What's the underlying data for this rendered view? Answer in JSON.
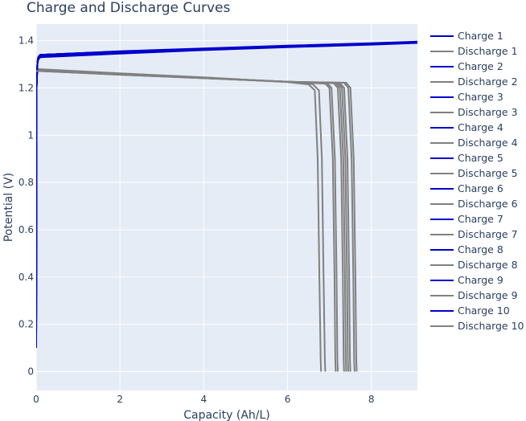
{
  "chart_data": {
    "type": "line",
    "title": "Charge and Discharge Curves",
    "xlabel": "Capacity (Ah/L)",
    "ylabel": "Potential (V)",
    "xlim": [
      0,
      9.1
    ],
    "ylim": [
      -0.08,
      1.47
    ],
    "x_ticks": [
      0,
      2,
      4,
      6,
      8
    ],
    "y_ticks": [
      0,
      0.2,
      0.4,
      0.6,
      0.8,
      1,
      1.2,
      1.4
    ],
    "grid": true,
    "legend_position": "right",
    "colors": {
      "charge": "#0000cd",
      "discharge": "#808080",
      "plot_bg": "#e5ecf6",
      "grid": "#ffffff",
      "text": "#2a3f5f"
    },
    "series": [
      {
        "name": "Charge 1",
        "kind": "charge",
        "x": [
          0,
          0.01,
          0.03,
          0.05,
          0.1,
          2,
          4,
          6,
          8,
          9.1
        ],
        "y": [
          0.1,
          1.2,
          1.3,
          1.32,
          1.33,
          1.345,
          1.36,
          1.372,
          1.383,
          1.39
        ]
      },
      {
        "name": "Discharge 1",
        "kind": "discharge",
        "x": [
          0,
          2,
          4,
          6,
          6.5,
          6.65,
          6.72,
          6.76,
          6.79,
          6.8
        ],
        "y": [
          1.28,
          1.262,
          1.245,
          1.225,
          1.215,
          1.19,
          0.9,
          0.4,
          0.05,
          0
        ]
      },
      {
        "name": "Charge 2",
        "kind": "charge",
        "x": [
          0,
          0.01,
          0.03,
          0.05,
          0.1,
          2,
          4,
          6,
          8,
          9.1
        ],
        "y": [
          0.12,
          1.2,
          1.31,
          1.325,
          1.335,
          1.348,
          1.362,
          1.374,
          1.384,
          1.392
        ]
      },
      {
        "name": "Discharge 2",
        "kind": "discharge",
        "x": [
          0,
          2,
          4,
          6,
          6.6,
          6.75,
          6.82,
          6.86,
          6.89,
          6.9
        ],
        "y": [
          1.278,
          1.26,
          1.243,
          1.225,
          1.216,
          1.19,
          0.9,
          0.4,
          0.05,
          0
        ]
      },
      {
        "name": "Charge 3",
        "kind": "charge",
        "x": [
          0,
          0.01,
          0.03,
          0.05,
          0.1,
          2,
          4,
          6,
          8,
          9.1
        ],
        "y": [
          0.13,
          1.21,
          1.31,
          1.328,
          1.338,
          1.35,
          1.363,
          1.375,
          1.385,
          1.392
        ]
      },
      {
        "name": "Discharge 3",
        "kind": "discharge",
        "x": [
          0,
          2,
          4,
          6,
          6.9,
          7.0,
          7.08,
          7.12,
          7.14,
          7.15
        ],
        "y": [
          1.276,
          1.26,
          1.243,
          1.226,
          1.218,
          1.2,
          0.9,
          0.4,
          0.05,
          0
        ]
      },
      {
        "name": "Charge 4",
        "kind": "charge",
        "x": [
          0,
          0.01,
          0.03,
          0.05,
          0.1,
          2,
          4,
          6,
          8,
          9.1
        ],
        "y": [
          0.13,
          1.21,
          1.31,
          1.33,
          1.34,
          1.352,
          1.364,
          1.376,
          1.386,
          1.393
        ]
      },
      {
        "name": "Discharge 4",
        "kind": "discharge",
        "x": [
          0,
          2,
          4,
          6,
          6.95,
          7.05,
          7.13,
          7.17,
          7.19,
          7.2
        ],
        "y": [
          1.275,
          1.259,
          1.243,
          1.226,
          1.219,
          1.2,
          0.9,
          0.4,
          0.05,
          0
        ]
      },
      {
        "name": "Charge 5",
        "kind": "charge",
        "x": [
          0,
          0.01,
          0.03,
          0.05,
          0.1,
          2,
          4,
          6,
          8,
          9.1
        ],
        "y": [
          0.14,
          1.21,
          1.31,
          1.33,
          1.34,
          1.352,
          1.364,
          1.376,
          1.386,
          1.393
        ]
      },
      {
        "name": "Discharge 5",
        "kind": "discharge",
        "x": [
          0,
          2,
          4,
          6,
          7.1,
          7.2,
          7.28,
          7.32,
          7.34,
          7.35
        ],
        "y": [
          1.274,
          1.258,
          1.242,
          1.226,
          1.22,
          1.2,
          0.9,
          0.4,
          0.05,
          0
        ]
      },
      {
        "name": "Charge 6",
        "kind": "charge",
        "x": [
          0,
          0.01,
          0.03,
          0.05,
          0.1,
          2,
          4,
          6,
          8,
          9.1
        ],
        "y": [
          0.14,
          1.21,
          1.31,
          1.33,
          1.34,
          1.353,
          1.365,
          1.377,
          1.387,
          1.394
        ]
      },
      {
        "name": "Discharge 6",
        "kind": "discharge",
        "x": [
          0,
          2,
          4,
          6,
          7.15,
          7.25,
          7.33,
          7.37,
          7.39,
          7.4
        ],
        "y": [
          1.274,
          1.258,
          1.242,
          1.226,
          1.22,
          1.2,
          0.9,
          0.4,
          0.05,
          0
        ]
      },
      {
        "name": "Charge 7",
        "kind": "charge",
        "x": [
          0,
          0.01,
          0.03,
          0.05,
          0.1,
          2,
          4,
          6,
          8,
          9.1
        ],
        "y": [
          0.15,
          1.21,
          1.31,
          1.33,
          1.34,
          1.353,
          1.365,
          1.377,
          1.387,
          1.394
        ]
      },
      {
        "name": "Discharge 7",
        "kind": "discharge",
        "x": [
          0,
          2,
          4,
          6,
          7.2,
          7.3,
          7.38,
          7.42,
          7.44,
          7.45
        ],
        "y": [
          1.273,
          1.257,
          1.242,
          1.226,
          1.221,
          1.2,
          0.9,
          0.4,
          0.05,
          0
        ]
      },
      {
        "name": "Charge 8",
        "kind": "charge",
        "x": [
          0,
          0.01,
          0.03,
          0.05,
          0.1,
          2,
          4,
          6,
          8,
          9.1
        ],
        "y": [
          0.15,
          1.21,
          1.31,
          1.33,
          1.34,
          1.354,
          1.366,
          1.378,
          1.388,
          1.395
        ]
      },
      {
        "name": "Discharge 8",
        "kind": "discharge",
        "x": [
          0,
          2,
          4,
          6,
          7.25,
          7.35,
          7.43,
          7.47,
          7.49,
          7.5
        ],
        "y": [
          1.273,
          1.257,
          1.242,
          1.226,
          1.221,
          1.2,
          0.9,
          0.4,
          0.05,
          0
        ]
      },
      {
        "name": "Charge 9",
        "kind": "charge",
        "x": [
          0,
          0.01,
          0.03,
          0.05,
          0.1,
          2,
          4,
          6,
          8,
          9.1
        ],
        "y": [
          0.16,
          1.21,
          1.31,
          1.33,
          1.34,
          1.354,
          1.366,
          1.378,
          1.388,
          1.395
        ]
      },
      {
        "name": "Discharge 9",
        "kind": "discharge",
        "x": [
          0,
          2,
          4,
          6,
          7.35,
          7.45,
          7.53,
          7.57,
          7.59,
          7.6
        ],
        "y": [
          1.272,
          1.256,
          1.241,
          1.226,
          1.222,
          1.2,
          0.9,
          0.4,
          0.05,
          0
        ]
      },
      {
        "name": "Charge 10",
        "kind": "charge",
        "x": [
          0,
          0.01,
          0.03,
          0.05,
          0.1,
          2,
          4,
          6,
          8,
          9.1
        ],
        "y": [
          0.16,
          1.21,
          1.31,
          1.33,
          1.34,
          1.355,
          1.367,
          1.379,
          1.389,
          1.396
        ]
      },
      {
        "name": "Discharge 10",
        "kind": "discharge",
        "x": [
          0,
          2,
          4,
          6,
          7.4,
          7.5,
          7.58,
          7.62,
          7.64,
          7.65
        ],
        "y": [
          1.272,
          1.256,
          1.241,
          1.226,
          1.222,
          1.2,
          0.9,
          0.4,
          0.05,
          0
        ]
      }
    ]
  }
}
